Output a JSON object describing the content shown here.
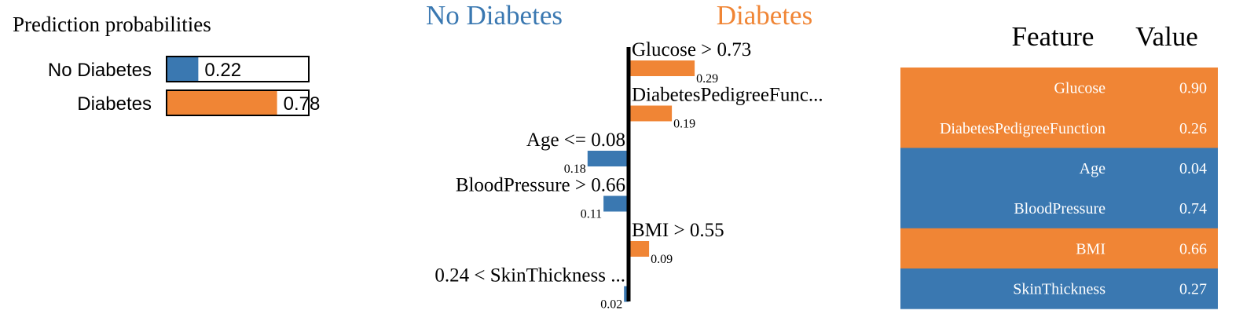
{
  "colors": {
    "negative": "#3a78b1",
    "positive": "#f08535",
    "text": "#000000",
    "table_text": "#ffffff"
  },
  "chart_data": [
    {
      "type": "bar",
      "orientation": "horizontal",
      "title": "Prediction probabilities",
      "categories": [
        "No Diabetes",
        "Diabetes"
      ],
      "values": [
        0.22,
        0.78
      ],
      "value_labels": [
        "0.22",
        "0.78"
      ],
      "colors": [
        "#3a78b1",
        "#f08535"
      ],
      "xlim": [
        0,
        1
      ],
      "grid": false
    },
    {
      "type": "bar",
      "orientation": "horizontal",
      "class_labels": {
        "negative": "No Diabetes",
        "positive": "Diabetes"
      },
      "features": [
        {
          "label": "Glucose > 0.73",
          "weight": 0.29,
          "weight_label": "0.29",
          "side": "positive"
        },
        {
          "label": "DiabetesPedigreeFunc...",
          "weight": 0.19,
          "weight_label": "0.19",
          "side": "positive"
        },
        {
          "label": "Age <= 0.08",
          "weight": 0.18,
          "weight_label": "0.18",
          "side": "negative"
        },
        {
          "label": "BloodPressure > 0.66",
          "weight": 0.11,
          "weight_label": "0.11",
          "side": "negative"
        },
        {
          "label": "BMI > 0.55",
          "weight": 0.09,
          "weight_label": "0.09",
          "side": "positive"
        },
        {
          "label": "0.24 < SkinThickness ...",
          "weight": 0.02,
          "weight_label": "0.02",
          "side": "negative"
        }
      ],
      "grid": false
    },
    {
      "type": "table",
      "columns": [
        "Feature",
        "Value"
      ],
      "rows": [
        {
          "feature": "Glucose",
          "value": "0.90",
          "side": "positive"
        },
        {
          "feature": "DiabetesPedigreeFunction",
          "value": "0.26",
          "side": "positive"
        },
        {
          "feature": "Age",
          "value": "0.04",
          "side": "negative"
        },
        {
          "feature": "BloodPressure",
          "value": "0.74",
          "side": "negative"
        },
        {
          "feature": "BMI",
          "value": "0.66",
          "side": "positive"
        },
        {
          "feature": "SkinThickness",
          "value": "0.27",
          "side": "negative"
        }
      ]
    }
  ]
}
